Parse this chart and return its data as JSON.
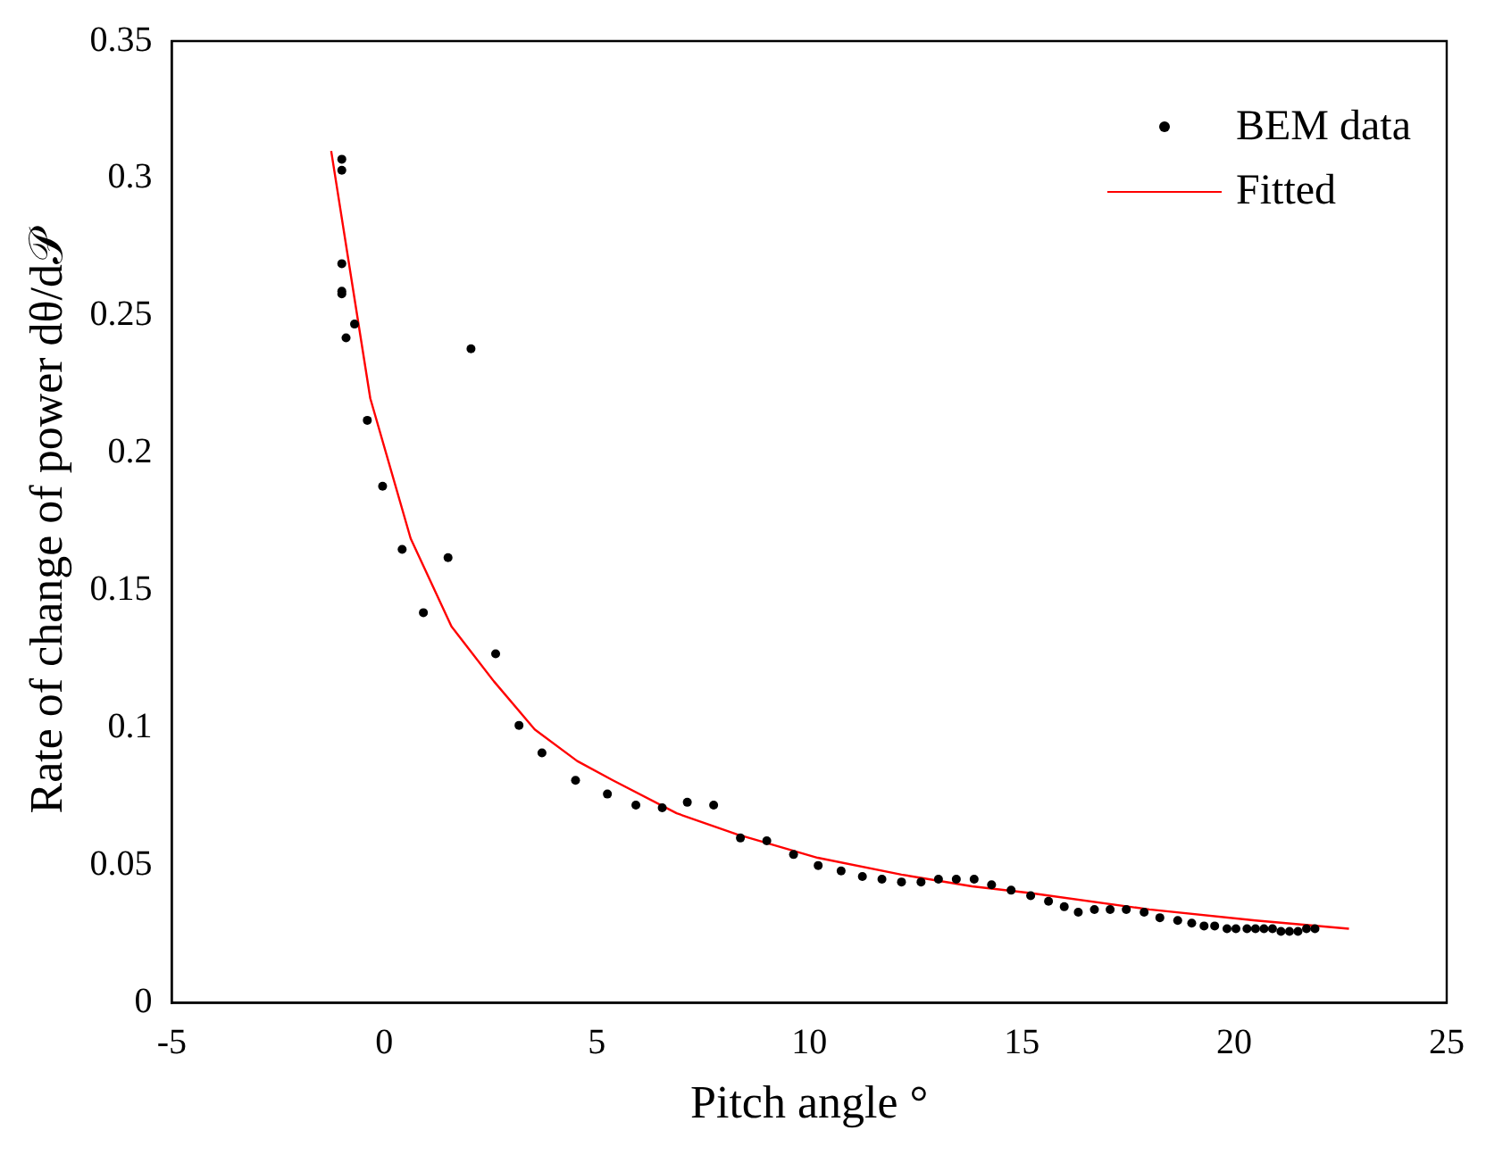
{
  "chart_data": {
    "type": "scatter",
    "xlabel": "Pitch angle °",
    "ylabel": "Rate of change of power dθ/d𝒫",
    "xlim": [
      -5,
      25
    ],
    "ylim": [
      0,
      0.35
    ],
    "xticks": [
      -5,
      0,
      5,
      10,
      15,
      20,
      25
    ],
    "yticks": [
      0,
      0.05,
      0.1,
      0.15,
      0.2,
      0.25,
      0.3,
      0.35
    ],
    "grid": false,
    "legend": "top right",
    "series": [
      {
        "name": "BEM data",
        "marker": "circle",
        "color": "#000000",
        "x": [
          -1.0,
          -1.0,
          -1.0,
          -1.0,
          -1.0,
          -0.7,
          -0.9,
          2.04,
          -0.4,
          -0.04,
          0.42,
          1.5,
          0.92,
          2.62,
          3.17,
          3.71,
          4.5,
          5.25,
          5.92,
          6.54,
          7.13,
          7.75,
          8.38,
          9.0,
          9.63,
          10.21,
          10.75,
          11.25,
          11.71,
          12.17,
          12.63,
          13.04,
          13.46,
          13.88,
          14.29,
          14.75,
          15.21,
          15.63,
          16.0,
          16.33,
          16.71,
          17.08,
          17.46,
          17.88,
          18.25,
          18.67,
          19.0,
          19.29,
          19.54,
          19.83,
          20.04,
          20.3,
          20.5,
          20.7,
          20.9,
          21.1,
          21.3,
          21.5,
          21.7,
          21.9
        ],
        "values": [
          0.307,
          0.303,
          0.269,
          0.259,
          0.258,
          0.247,
          0.242,
          0.238,
          0.212,
          0.188,
          0.165,
          0.162,
          0.142,
          0.127,
          0.101,
          0.091,
          0.081,
          0.076,
          0.072,
          0.071,
          0.073,
          0.072,
          0.06,
          0.059,
          0.054,
          0.05,
          0.048,
          0.046,
          0.045,
          0.044,
          0.044,
          0.045,
          0.045,
          0.045,
          0.043,
          0.041,
          0.039,
          0.037,
          0.035,
          0.033,
          0.034,
          0.034,
          0.034,
          0.033,
          0.031,
          0.03,
          0.029,
          0.028,
          0.028,
          0.027,
          0.027,
          0.027,
          0.027,
          0.027,
          0.027,
          0.026,
          0.026,
          0.026,
          0.027,
          0.027
        ]
      },
      {
        "name": "Fitted",
        "type": "line",
        "marker": "none",
        "color": "#ff0000",
        "x": [
          -1.25,
          -0.33,
          0.62,
          1.58,
          2.58,
          3.54,
          4.54,
          5.38,
          6.88,
          8.29,
          10.2,
          12.17,
          13.83,
          15.2,
          18.0,
          20.5,
          22.7
        ],
        "values": [
          0.31,
          0.22,
          0.169,
          0.137,
          0.117,
          0.0995,
          0.088,
          0.081,
          0.069,
          0.0614,
          0.0528,
          0.0467,
          0.0424,
          0.04,
          0.034,
          0.03,
          0.027
        ]
      }
    ]
  }
}
